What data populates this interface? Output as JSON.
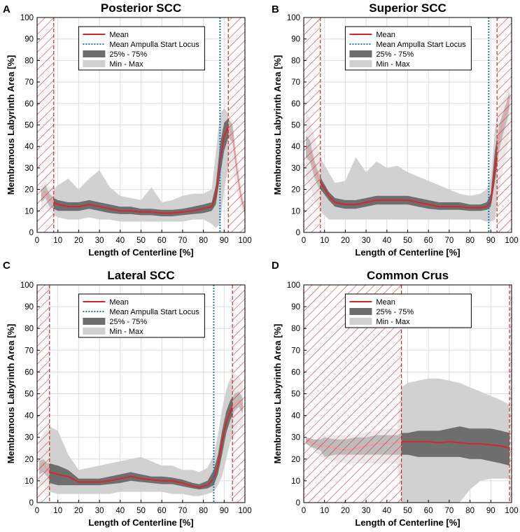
{
  "chart_data": [
    {
      "panel": "A",
      "type": "line",
      "title": "Posterior SCC",
      "xlabel": "Length of Centerline [%]",
      "ylabel": "Membranous Labyrinth Area [%]",
      "xlim": [
        0,
        100
      ],
      "ylim": [
        0,
        100
      ],
      "xticks": [
        "0",
        "10",
        "20",
        "30",
        "40",
        "50",
        "60",
        "70",
        "80",
        "90",
        "100"
      ],
      "yticks": [
        "0",
        "10",
        "20",
        "30",
        "40",
        "50",
        "60",
        "70",
        "80",
        "90",
        "100"
      ],
      "grid": true,
      "legend": [
        "Mean",
        "Mean Ampulla Start Locus",
        "25% - 75%",
        "Min - Max"
      ],
      "legend_position": "top-center",
      "hatched_regions": [
        [
          0,
          8
        ],
        [
          92,
          100
        ]
      ],
      "ampulla_start": 88,
      "x": [
        2,
        4,
        6,
        8,
        10,
        15,
        20,
        25,
        30,
        35,
        40,
        45,
        50,
        55,
        60,
        65,
        70,
        75,
        80,
        84,
        86,
        88,
        90,
        92,
        94,
        96,
        98,
        100
      ],
      "mean": [
        17,
        19,
        15,
        14,
        13,
        12,
        12,
        13,
        12,
        11,
        10,
        10,
        9.5,
        9.5,
        9,
        9,
        9.5,
        10,
        11,
        12,
        17,
        33,
        45,
        49,
        46,
        30,
        17,
        10
      ],
      "q25": [
        14,
        16,
        12,
        11,
        10,
        10,
        10,
        11,
        10,
        9,
        8.5,
        8.5,
        8,
        8,
        7.5,
        7.5,
        8,
        8.5,
        9,
        10,
        13,
        26,
        38,
        44,
        42,
        27,
        15,
        9
      ],
      "q75": [
        20,
        22,
        18,
        16,
        15,
        14,
        14,
        15,
        14,
        13,
        12,
        12,
        11,
        11,
        10.5,
        10.5,
        11,
        12,
        13,
        14,
        22,
        41,
        51,
        53,
        50,
        33,
        19,
        11
      ],
      "min": [
        10,
        12,
        10,
        8,
        7,
        6,
        6,
        7,
        6,
        6,
        5,
        5,
        5,
        5,
        5,
        5,
        5,
        6,
        6,
        4,
        2,
        4,
        20,
        30,
        30,
        20,
        12,
        8
      ],
      "max": [
        22,
        24,
        21,
        20,
        22,
        25,
        20,
        25,
        29,
        21,
        17,
        16,
        15,
        21,
        14,
        15,
        17,
        18,
        18,
        20,
        37,
        55,
        58,
        55,
        52,
        36,
        22,
        13
      ]
    },
    {
      "panel": "B",
      "type": "line",
      "title": "Superior SCC",
      "xlabel": "Length of Centerline [%]",
      "ylabel": "Membranous Labyrinth Area [%]",
      "xlim": [
        0,
        100
      ],
      "ylim": [
        0,
        100
      ],
      "xticks": [
        "0",
        "10",
        "20",
        "30",
        "40",
        "50",
        "60",
        "70",
        "80",
        "90",
        "100"
      ],
      "yticks": [
        "0",
        "10",
        "20",
        "30",
        "40",
        "50",
        "60",
        "70",
        "80",
        "90",
        "100"
      ],
      "grid": true,
      "legend": [
        "Mean",
        "Mean Ampulla Start Locus",
        "25% - 75%",
        "Min - Max"
      ],
      "legend_position": "top-center",
      "hatched_regions": [
        [
          0,
          8
        ],
        [
          93,
          100
        ]
      ],
      "ampulla_start": 89,
      "x": [
        1,
        3,
        5,
        7,
        9,
        12,
        15,
        20,
        25,
        30,
        35,
        40,
        45,
        50,
        55,
        60,
        65,
        70,
        75,
        80,
        85,
        88,
        90,
        92,
        94,
        96,
        98,
        99
      ],
      "mean": [
        40,
        38,
        30,
        25,
        22,
        17,
        14,
        13,
        13,
        14,
        15,
        15,
        15,
        15,
        14,
        13,
        12,
        12,
        12,
        11.5,
        11.5,
        12,
        14,
        30,
        44,
        52,
        58,
        63
      ],
      "q25": [
        35,
        33,
        26,
        21,
        19,
        15,
        12,
        11,
        11,
        12,
        13,
        13,
        13,
        13,
        12,
        11,
        10.5,
        10.5,
        10.5,
        10,
        10,
        10.5,
        12,
        24,
        38,
        46,
        53,
        58
      ],
      "q75": [
        45,
        43,
        34,
        28,
        24,
        19,
        16,
        15,
        15,
        16,
        17,
        17,
        17,
        17,
        16,
        15,
        14,
        14,
        14,
        13,
        13,
        14,
        18,
        38,
        50,
        56,
        62,
        66
      ],
      "min": [
        25,
        22,
        15,
        12,
        9,
        6,
        6,
        6,
        6,
        6,
        6,
        6,
        6,
        6,
        6,
        6,
        6,
        6,
        6,
        6,
        6,
        5,
        5,
        6,
        20,
        30,
        40,
        48
      ],
      "max": [
        58,
        52,
        45,
        38,
        33,
        28,
        23,
        24,
        35,
        28,
        33,
        30,
        31,
        28,
        26,
        24,
        22,
        20,
        18,
        17,
        18,
        20,
        25,
        48,
        58,
        62,
        66,
        70
      ]
    },
    {
      "panel": "C",
      "type": "line",
      "title": "Lateral SCC",
      "xlabel": "Length of Centerline [%]",
      "ylabel": "Membranous Labyrinth Area [%]",
      "xlim": [
        0,
        100
      ],
      "ylim": [
        0,
        100
      ],
      "xticks": [
        "0",
        "10",
        "20",
        "30",
        "40",
        "50",
        "60",
        "70",
        "80",
        "90",
        "100"
      ],
      "yticks": [
        "0",
        "10",
        "20",
        "30",
        "40",
        "50",
        "60",
        "70",
        "80",
        "90",
        "100"
      ],
      "grid": true,
      "legend": [
        "Mean",
        "Mean Ampulla Start Locus",
        "25% - 75%",
        "Min - Max"
      ],
      "legend_position": "top-center",
      "hatched_regions": [
        [
          0,
          6
        ],
        [
          94,
          100
        ]
      ],
      "ampulla_start": 85,
      "x": [
        1,
        3,
        5,
        6,
        10,
        15,
        20,
        25,
        30,
        35,
        40,
        45,
        50,
        55,
        60,
        65,
        70,
        75,
        78,
        82,
        85,
        87,
        89,
        91,
        93,
        95,
        97,
        99
      ],
      "mean": [
        16,
        18,
        15,
        14,
        13,
        12,
        9.5,
        9.5,
        9.5,
        10,
        11,
        12,
        11,
        10.5,
        10,
        10,
        9,
        7.5,
        7,
        8,
        11,
        17,
        28,
        37,
        42,
        45,
        47,
        44
      ],
      "q25": [
        13,
        14,
        12,
        9,
        8,
        8,
        8,
        8,
        8,
        8.5,
        9,
        10,
        9.5,
        9,
        8.5,
        8.5,
        7.5,
        6.5,
        6,
        6.5,
        8,
        13,
        22,
        32,
        38,
        42,
        44,
        41
      ],
      "q75": [
        19,
        20,
        18,
        18,
        17,
        15,
        11,
        11,
        11,
        12,
        13,
        14,
        13,
        12,
        12,
        11.5,
        10.5,
        9,
        8.5,
        10,
        15,
        22,
        33,
        42,
        47,
        50,
        51,
        48
      ],
      "min": [
        8,
        8,
        7,
        5,
        4,
        4,
        4,
        4,
        4,
        4,
        5,
        5,
        5,
        5,
        5,
        4,
        4,
        3,
        3,
        4,
        5,
        8,
        12,
        20,
        28,
        32,
        36,
        34
      ],
      "max": [
        28,
        32,
        34,
        35,
        33,
        22,
        15,
        16,
        17,
        18,
        19,
        20,
        21,
        19,
        17,
        17,
        15,
        15,
        14,
        16,
        22,
        31,
        43,
        52,
        57,
        59,
        58,
        55
      ]
    },
    {
      "panel": "D",
      "type": "line",
      "title": "Common Crus",
      "xlabel": "Length of Centerline [%]",
      "ylabel": "Membranous Labyrinth Area [%]",
      "xlim": [
        0,
        100
      ],
      "ylim": [
        0,
        100
      ],
      "xticks": [
        "0",
        "10",
        "20",
        "30",
        "40",
        "50",
        "60",
        "70",
        "80",
        "90",
        "100"
      ],
      "yticks": [
        "0",
        "10",
        "20",
        "30",
        "40",
        "50",
        "60",
        "70",
        "80",
        "90",
        "100"
      ],
      "grid": true,
      "legend": [
        "Mean",
        "25% - 75%",
        "Min - Max"
      ],
      "legend_position": "top-center",
      "hatched_regions": [
        [
          0,
          47
        ],
        [
          99,
          100
        ]
      ],
      "ampulla_start": null,
      "x": [
        1,
        5,
        8,
        10,
        15,
        20,
        25,
        30,
        35,
        40,
        45,
        47,
        50,
        55,
        60,
        65,
        70,
        75,
        80,
        85,
        90,
        95,
        99
      ],
      "mean": [
        29,
        27,
        26,
        26,
        25,
        24,
        25,
        26,
        27,
        27,
        27.5,
        28,
        28,
        28,
        28,
        27.5,
        28,
        27.5,
        27,
        27,
        26.5,
        26,
        25
      ],
      "q25": [
        27,
        25,
        24,
        21,
        22,
        22,
        22,
        22,
        22,
        22,
        22,
        22,
        22,
        21,
        21,
        21,
        21,
        21,
        20,
        20,
        19,
        18,
        17
      ],
      "q75": [
        30,
        29,
        29,
        30,
        29,
        29,
        30,
        30,
        31,
        31,
        31,
        32,
        32,
        33,
        33,
        33,
        34,
        35,
        34,
        34,
        34,
        33,
        32
      ],
      "min": [
        27,
        24,
        21,
        20,
        19,
        18,
        18,
        18,
        18,
        18,
        18,
        0,
        0,
        0,
        0,
        0,
        0,
        0,
        6,
        10,
        11,
        11,
        11
      ],
      "max": [
        30,
        29,
        30,
        31,
        31,
        31,
        31,
        32,
        33,
        34,
        34,
        53,
        55,
        56,
        57,
        57,
        56,
        55,
        53,
        51,
        49,
        47,
        45
      ]
    }
  ]
}
